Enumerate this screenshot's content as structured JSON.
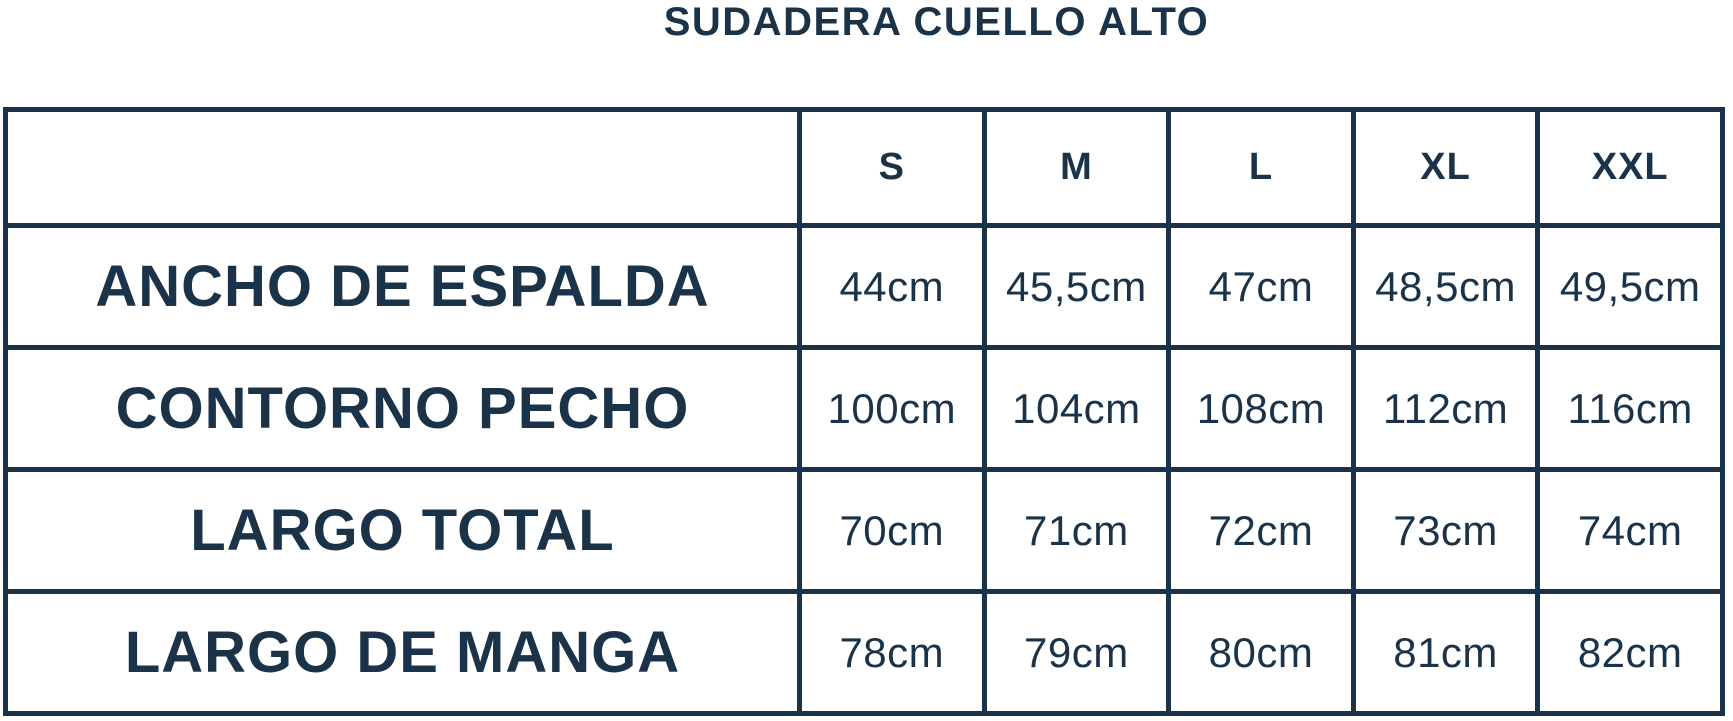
{
  "page": {
    "title": "SUDADERA CUELLO ALTO"
  },
  "colors": {
    "ink": "#1b3349",
    "background": "#ffffff"
  },
  "chart_data": {
    "type": "table",
    "title": "SUDADERA CUELLO ALTO",
    "columns": [
      "",
      "S",
      "M",
      "L",
      "XL",
      "XXL"
    ],
    "rows": [
      {
        "label": "ANCHO DE ESPALDA",
        "values": [
          "44cm",
          "45,5cm",
          "47cm",
          "48,5cm",
          "49,5cm"
        ]
      },
      {
        "label": "CONTORNO PECHO",
        "values": [
          "100cm",
          "104cm",
          "108cm",
          "112cm",
          "116cm"
        ]
      },
      {
        "label": "LARGO TOTAL",
        "values": [
          "70cm",
          "71cm",
          "72cm",
          "73cm",
          "74cm"
        ]
      },
      {
        "label": "LARGO DE MANGA",
        "values": [
          "78cm",
          "79cm",
          "80cm",
          "81cm",
          "82cm"
        ]
      }
    ],
    "layout": {
      "grid": "on",
      "label_column_ratio": 0.46,
      "units": "cm"
    }
  }
}
